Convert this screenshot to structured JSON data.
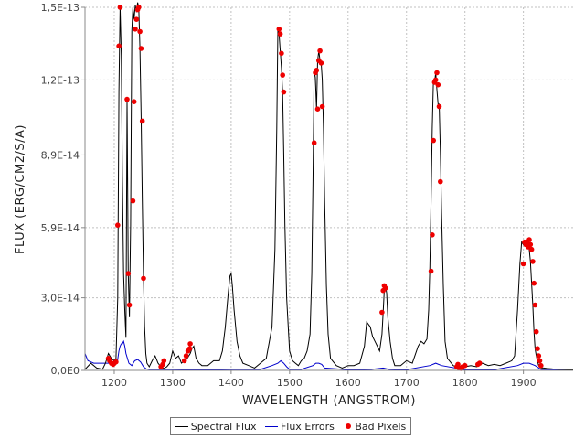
{
  "chart_data": {
    "type": "line",
    "title": "",
    "xlabel": "WAVELENGTH (ANGSTROM)",
    "ylabel": "FLUX (ERG/CM2/S/A)",
    "xlim": [
      1150,
      1985
    ],
    "ylim": [
      0,
      1.5e-13
    ],
    "x_ticks": [
      1200,
      1300,
      1400,
      1500,
      1600,
      1700,
      1800,
      1900
    ],
    "x_tick_labels": [
      "1200",
      "1300",
      "1400",
      "1500",
      "1600",
      "1700",
      "1800",
      "1900"
    ],
    "y_ticks": [
      0,
      3e-14,
      5.9e-14,
      8.9e-14,
      1.2e-13,
      1.5e-13
    ],
    "y_tick_labels": [
      "0,0E0",
      "3,0E-14",
      "5,9E-14",
      "8,9E-14",
      "1,2E-13",
      "1,5E-13"
    ],
    "grid": true,
    "legend_position": "bottom-center",
    "colors": {
      "flux": "#000000",
      "errors": "#0000cc",
      "bad": "#ee0000",
      "grid": "#c0c0c0"
    },
    "series": [
      {
        "name": "Spectral Flux",
        "x": [
          1150,
          1160,
          1170,
          1180,
          1185,
          1190,
          1195,
          1200,
          1203,
          1206,
          1208,
          1210,
          1212,
          1214,
          1216,
          1218,
          1220,
          1222,
          1224,
          1226,
          1228,
          1230,
          1232,
          1234,
          1236,
          1238,
          1240,
          1242,
          1244,
          1246,
          1248,
          1250,
          1252,
          1254,
          1256,
          1260,
          1265,
          1270,
          1275,
          1280,
          1285,
          1290,
          1295,
          1300,
          1305,
          1310,
          1315,
          1320,
          1325,
          1330,
          1333,
          1336,
          1340,
          1345,
          1350,
          1360,
          1370,
          1380,
          1385,
          1390,
          1395,
          1398,
          1400,
          1402,
          1405,
          1410,
          1415,
          1420,
          1430,
          1440,
          1450,
          1460,
          1470,
          1475,
          1478,
          1480,
          1482,
          1484,
          1486,
          1488,
          1490,
          1492,
          1495,
          1500,
          1505,
          1510,
          1515,
          1520,
          1525,
          1530,
          1535,
          1538,
          1540,
          1542,
          1544,
          1546,
          1548,
          1550,
          1552,
          1554,
          1556,
          1558,
          1560,
          1563,
          1566,
          1570,
          1580,
          1590,
          1600,
          1610,
          1620,
          1628,
          1632,
          1638,
          1642,
          1646,
          1650,
          1654,
          1658,
          1660,
          1662,
          1664,
          1666,
          1668,
          1672,
          1676,
          1680,
          1690,
          1700,
          1710,
          1720,
          1725,
          1730,
          1735,
          1738,
          1740,
          1742,
          1744,
          1746,
          1748,
          1750,
          1752,
          1754,
          1756,
          1758,
          1760,
          1763,
          1766,
          1770,
          1780,
          1790,
          1800,
          1810,
          1820,
          1830,
          1840,
          1850,
          1860,
          1870,
          1880,
          1885,
          1890,
          1894,
          1897,
          1900,
          1902,
          1904,
          1906,
          1908,
          1910,
          1912,
          1914,
          1916,
          1918,
          1920,
          1922,
          1924,
          1926,
          1928,
          1930,
          1935,
          1940,
          1950,
          1960,
          1970,
          1985
        ],
        "values": [
          4e-16,
          3e-15,
          1e-15,
          5e-16,
          3e-15,
          7e-15,
          5e-15,
          4e-15,
          5e-15,
          3e-14,
          1.15e-13,
          1.5e-13,
          1.3e-13,
          8e-14,
          4e-14,
          2.5e-14,
          1.35e-14,
          1.12e-13,
          4e-14,
          2.2e-14,
          6e-14,
          1.4e-13,
          1.5e-13,
          1.45e-13,
          1.51e-13,
          1.48e-13,
          1.52e-13,
          1.5e-13,
          1.33e-13,
          1.05e-13,
          7e-14,
          3.8e-14,
          1.8e-14,
          7e-15,
          3e-15,
          1.5e-15,
          4e-15,
          6e-15,
          3e-15,
          1.5e-15,
          8e-16,
          1.5e-15,
          3e-15,
          8e-15,
          5e-15,
          6e-15,
          3e-15,
          4e-15,
          5e-15,
          7e-15,
          9e-15,
          1e-14,
          5e-15,
          3e-15,
          2e-15,
          2e-15,
          4e-15,
          4e-15,
          8e-15,
          1.8e-14,
          3.2e-14,
          3.9e-14,
          4e-14,
          3.5e-14,
          2.5e-14,
          1.2e-14,
          6e-15,
          3e-15,
          2e-15,
          1e-15,
          3e-15,
          5e-15,
          1.8e-14,
          5e-14,
          1e-13,
          1.41e-13,
          1.39e-13,
          1.32e-13,
          1.25e-13,
          1.15e-13,
          9e-14,
          6e-14,
          3e-14,
          8e-15,
          4e-15,
          3e-15,
          2e-15,
          4e-15,
          5e-15,
          8e-15,
          1.5e-14,
          4e-14,
          7.8e-14,
          1.24e-13,
          1.21e-13,
          1.08e-13,
          1.28e-13,
          1.32e-13,
          1.28e-13,
          1.27e-13,
          1.2e-13,
          1e-13,
          7e-14,
          3.5e-14,
          1.5e-14,
          5e-15,
          2e-15,
          1e-15,
          2e-15,
          2e-15,
          3e-15,
          1e-14,
          2e-14,
          1.8e-14,
          1.4e-14,
          1.2e-14,
          1e-14,
          8e-15,
          1.5e-14,
          2.4e-14,
          3.3e-14,
          3.5e-14,
          3.2e-14,
          2.2e-14,
          1.2e-14,
          5e-15,
          2e-15,
          2e-15,
          4e-15,
          3e-15,
          1e-14,
          1.2e-14,
          1.1e-14,
          1.3e-14,
          2.5e-14,
          4.3e-14,
          7e-14,
          1e-13,
          1.2e-13,
          1.19e-13,
          1.23e-13,
          1.16e-13,
          1.1e-13,
          1.1e-13,
          9e-14,
          6.5e-14,
          3.5e-14,
          1.2e-14,
          5e-15,
          2e-15,
          1e-15,
          1.5e-15,
          2e-15,
          1.5e-15,
          3e-15,
          2e-15,
          2.5e-15,
          2e-15,
          3e-15,
          4e-15,
          6e-15,
          2.5e-14,
          4.4e-14,
          5.3e-14,
          5.2e-14,
          5.3e-14,
          5.1e-14,
          5.4e-14,
          5.2e-14,
          5e-14,
          4.5e-14,
          3.6e-14,
          2.7e-14,
          1.6e-14,
          9e-15,
          6e-15,
          4e-15,
          2e-15,
          1.5e-15,
          1e-15,
          1e-15,
          8e-16,
          6e-16,
          5e-16,
          4e-16,
          3e-16
        ]
      },
      {
        "name": "Flux Errors",
        "x": [
          1150,
          1155,
          1160,
          1165,
          1170,
          1175,
          1180,
          1185,
          1190,
          1195,
          1200,
          1205,
          1208,
          1210,
          1212,
          1214,
          1216,
          1218,
          1220,
          1225,
          1230,
          1235,
          1240,
          1245,
          1250,
          1255,
          1260,
          1280,
          1300,
          1350,
          1400,
          1450,
          1470,
          1480,
          1485,
          1490,
          1495,
          1500,
          1520,
          1540,
          1545,
          1550,
          1555,
          1560,
          1600,
          1640,
          1660,
          1670,
          1700,
          1740,
          1750,
          1760,
          1800,
          1850,
          1890,
          1900,
          1910,
          1920,
          1930,
          1985
        ],
        "values": [
          7e-15,
          4e-15,
          3.5e-15,
          3e-15,
          3e-15,
          3e-15,
          3e-15,
          3e-15,
          3e-15,
          3e-15,
          3e-15,
          3e-15,
          8e-15,
          1e-14,
          1.1e-14,
          1.1e-14,
          1.2e-14,
          1e-14,
          7e-15,
          3e-15,
          2e-15,
          4e-15,
          4.5e-15,
          3.5e-15,
          1.5e-15,
          6e-16,
          4e-16,
          4e-16,
          4e-16,
          3e-16,
          4e-16,
          4e-16,
          2e-15,
          3e-15,
          4e-15,
          3e-15,
          1.5e-15,
          4e-16,
          4e-16,
          2e-15,
          3e-15,
          3e-15,
          2.5e-15,
          1e-15,
          3e-16,
          4e-16,
          1e-15,
          4e-16,
          3e-16,
          2e-15,
          3e-15,
          2e-15,
          3e-16,
          3e-16,
          2e-15,
          3e-15,
          3e-15,
          2e-15,
          4e-16,
          3e-16
        ]
      },
      {
        "name": "Bad Pixels",
        "x": [
          1190,
          1192,
          1195,
          1198,
          1200,
          1203,
          1206,
          1208,
          1210,
          1222,
          1224,
          1226,
          1232,
          1234,
          1236,
          1238,
          1240,
          1242,
          1244,
          1246,
          1248,
          1250,
          1280,
          1283,
          1285,
          1320,
          1323,
          1326,
          1329,
          1330,
          1482,
          1484,
          1486,
          1488,
          1490,
          1542,
          1544,
          1546,
          1548,
          1550,
          1552,
          1554,
          1556,
          1658,
          1660,
          1662,
          1664,
          1742,
          1744,
          1746,
          1748,
          1750,
          1752,
          1754,
          1756,
          1758,
          1786,
          1788,
          1790,
          1793,
          1796,
          1800,
          1822,
          1825,
          1900,
          1902,
          1904,
          1906,
          1908,
          1910,
          1912,
          1914,
          1916,
          1918,
          1920,
          1922,
          1924,
          1926,
          1928,
          1930
        ],
        "values": [
          5e-15,
          4e-15,
          3e-15,
          2.5e-15,
          3e-15,
          3.5e-15,
          6e-14,
          1.34e-13,
          1.5e-13,
          1.12e-13,
          4e-14,
          2.7e-14,
          7e-14,
          1.11e-13,
          1.41e-13,
          1.45e-13,
          1.49e-13,
          1.5e-13,
          1.4e-13,
          1.33e-13,
          1.03e-13,
          3.8e-14,
          1.5e-15,
          2.5e-15,
          4e-15,
          4e-15,
          6e-15,
          8e-15,
          9e-15,
          1.1e-14,
          1.41e-13,
          1.39e-13,
          1.31e-13,
          1.22e-13,
          1.15e-13,
          9.4e-14,
          1.23e-13,
          1.24e-13,
          1.08e-13,
          1.28e-13,
          1.32e-13,
          1.27e-13,
          1.09e-13,
          2.4e-14,
          3.3e-14,
          3.5e-14,
          3.4e-14,
          4.1e-14,
          5.6e-14,
          9.5e-14,
          1.19e-13,
          1.2e-13,
          1.23e-13,
          1.18e-13,
          1.09e-13,
          7.8e-14,
          1.5e-15,
          2.5e-15,
          1e-15,
          8e-16,
          1.5e-15,
          2e-15,
          2.5e-15,
          3e-15,
          4.4e-14,
          5.3e-14,
          5.2e-14,
          5.3e-14,
          5.1e-14,
          5.4e-14,
          5.2e-14,
          5e-14,
          4.5e-14,
          3.6e-14,
          2.7e-14,
          1.6e-14,
          9e-15,
          6e-15,
          4e-15,
          2e-15
        ]
      }
    ]
  }
}
